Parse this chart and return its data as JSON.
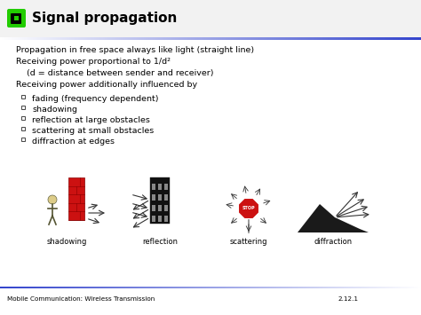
{
  "title": "Signal propagation",
  "title_fontsize": 11,
  "body_fontsize": 6.8,
  "small_fontsize": 6.0,
  "footer_fontsize": 5.2,
  "line1": "Propagation in free space always like light (straight line)",
  "line2": "Receiving power proportional to 1/d²",
  "line3": "    (d = distance between sender and receiver)",
  "line4": "Receiving power additionally influenced by",
  "bullets": [
    "fading (frequency dependent)",
    "shadowing",
    "reflection at large obstacles",
    "scattering at small obstacles",
    "diffraction at edges"
  ],
  "image_labels": [
    "shadowing",
    "reflection",
    "scattering",
    "diffraction"
  ],
  "img_centers": [
    75,
    180,
    280,
    375
  ],
  "footer_left": "Mobile Communication: Wireless Transmission",
  "footer_right": "2.12.1",
  "header_green": "#22cc00",
  "header_blue_end": "#3344cc",
  "slide_bg": "#ffffff",
  "outer_bg": "#cccccc"
}
